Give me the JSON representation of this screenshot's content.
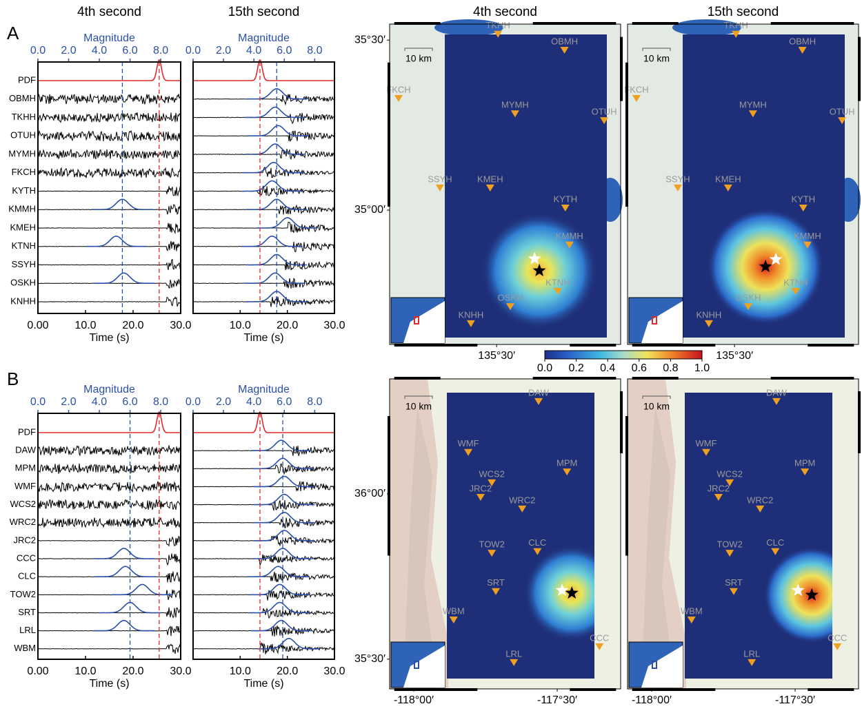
{
  "panels": [
    {
      "label": "A",
      "waveforms": {
        "pdf_label": "PDF",
        "stations": [
          "OBMH",
          "TKHH",
          "OTUH",
          "MYMH",
          "FKCH",
          "KYTH",
          "KMMH",
          "KMEH",
          "KTNH",
          "SSYH",
          "OSKH",
          "KNHH"
        ],
        "magnitude_axis": {
          "label": "Magnitude",
          "lim": [
            0,
            9.3
          ],
          "ticks": [
            {
              "value": 0,
              "label": "0.0"
            },
            {
              "value": 2,
              "label": "2.0"
            },
            {
              "value": 4,
              "label": "4.0"
            },
            {
              "value": 6,
              "label": "6.0"
            },
            {
              "value": 8,
              "label": "8.0"
            }
          ]
        },
        "time_axis": {
          "label": "Time (s)",
          "lim": [
            0,
            30
          ]
        },
        "columns": [
          {
            "title": "4th second",
            "time_ticks": [
              {
                "value": 0,
                "label": "0.00"
              },
              {
                "value": 10,
                "label": "10.0"
              },
              {
                "value": 20,
                "label": "20.0"
              },
              {
                "value": 30,
                "label": "30.0"
              }
            ],
            "true_magnitude": 5.5,
            "estimated_magnitude": 7.9,
            "station_estimates": [
              null,
              null,
              null,
              null,
              null,
              null,
              5.5,
              null,
              5.1,
              null,
              5.6,
              null
            ]
          },
          {
            "title": "15th second",
            "time_ticks": [
              {
                "value": 10,
                "label": "10.0"
              },
              {
                "value": 20,
                "label": "20.0"
              },
              {
                "value": 30,
                "label": "30.0"
              }
            ],
            "true_magnitude": 5.5,
            "estimated_magnitude": 4.4,
            "station_estimates": [
              5.5,
              5.4,
              5.6,
              5.4,
              5.3,
              5.2,
              5.5,
              6.2,
              5.2,
              5.5,
              5.4,
              5.5
            ]
          }
        ]
      },
      "maps": {
        "lonlim": [
          135.117,
          135.944
        ],
        "latlim": [
          34.605,
          35.547
        ],
        "lat_ticks": [
          {
            "value": 35.5,
            "label": "35°30′"
          },
          {
            "value": 35.0,
            "label": "35°00′"
          }
        ],
        "lon_ticks": [
          {
            "value": 135.5,
            "label": "135°30′"
          }
        ],
        "scale_label": "10 km",
        "stations": [
          {
            "name": "TKHH",
            "lon": 135.505,
            "lat": 35.507
          },
          {
            "name": "OBMH",
            "lon": 135.743,
            "lat": 35.46
          },
          {
            "name": "FKCH",
            "lon": 135.149,
            "lat": 35.318
          },
          {
            "name": "MYMH",
            "lon": 135.566,
            "lat": 35.273
          },
          {
            "name": "OTUH",
            "lon": 135.885,
            "lat": 35.253
          },
          {
            "name": "SSYH",
            "lon": 135.297,
            "lat": 35.055
          },
          {
            "name": "KMEH",
            "lon": 135.477,
            "lat": 35.055
          },
          {
            "name": "KYTH",
            "lon": 135.746,
            "lat": 34.996
          },
          {
            "name": "KMMH",
            "lon": 135.761,
            "lat": 34.887
          },
          {
            "name": "KTNH",
            "lon": 135.719,
            "lat": 34.751
          },
          {
            "name": "OSKH",
            "lon": 135.549,
            "lat": 34.706
          },
          {
            "name": "KNHH",
            "lon": 135.408,
            "lat": 34.656
          }
        ],
        "columns": [
          {
            "title": "4th second",
            "epicenter": {
              "lon": 135.636,
              "lat": 34.857
            },
            "estimate": {
              "lon": 135.653,
              "lat": 34.822
            }
          },
          {
            "title": "15th second",
            "epicenter": {
              "lon": 135.648,
              "lat": 34.855
            },
            "estimate": {
              "lon": 135.611,
              "lat": 34.834
            }
          }
        ]
      }
    },
    {
      "label": "B",
      "waveforms": {
        "pdf_label": "PDF",
        "stations": [
          "DAW",
          "MPM",
          "WMF",
          "WCS2",
          "WRC2",
          "JRC2",
          "CCC",
          "CLC",
          "TOW2",
          "SRT",
          "LRL",
          "WBM"
        ],
        "magnitude_axis": {
          "label": "Magnitude",
          "lim": [
            0,
            9.3
          ],
          "ticks": [
            {
              "value": 0,
              "label": "0.0"
            },
            {
              "value": 2,
              "label": "2.0"
            },
            {
              "value": 4,
              "label": "4.0"
            },
            {
              "value": 6,
              "label": "6.0"
            },
            {
              "value": 8,
              "label": "8.0"
            }
          ]
        },
        "time_axis": {
          "label": "Time (s)",
          "lim": [
            0,
            30
          ]
        },
        "columns": [
          {
            "time_ticks": [
              {
                "value": 0,
                "label": "0.00"
              },
              {
                "value": 10,
                "label": "10.0"
              },
              {
                "value": 20,
                "label": "20.0"
              },
              {
                "value": 30,
                "label": "30.0"
              }
            ],
            "true_magnitude": 6.0,
            "estimated_magnitude": 7.9,
            "station_estimates": [
              null,
              null,
              null,
              null,
              null,
              null,
              5.6,
              5.7,
              6.8,
              6.0,
              5.6,
              null
            ]
          },
          {
            "time_ticks": [
              {
                "value": 10,
                "label": "10.0"
              },
              {
                "value": 20,
                "label": "20.0"
              },
              {
                "value": 30,
                "label": "30.0"
              }
            ],
            "true_magnitude": 5.9,
            "estimated_magnitude": 4.4,
            "station_estimates": [
              5.8,
              5.9,
              6.0,
              6.0,
              6.0,
              6.0,
              5.9,
              5.6,
              5.7,
              5.7,
              5.8,
              6.3
            ]
          }
        ]
      },
      "maps": {
        "lonlim": [
          -118.084,
          -117.279
        ],
        "latlim": [
          35.41,
          36.348
        ],
        "lat_ticks": [
          {
            "value": 36.0,
            "label": "36°00′"
          },
          {
            "value": 35.5,
            "label": "35°30′"
          }
        ],
        "lon_ticks": [
          {
            "value": -118.0,
            "label": "-118°00′"
          },
          {
            "value": -117.5,
            "label": "-117°30′"
          }
        ],
        "scale_label": "10 km",
        "stations": [
          {
            "name": "DAW",
            "lon": -117.565,
            "lat": 36.269
          },
          {
            "name": "WMF",
            "lon": -117.81,
            "lat": 36.115
          },
          {
            "name": "MPM",
            "lon": -117.466,
            "lat": 36.056
          },
          {
            "name": "WCS2",
            "lon": -117.728,
            "lat": 36.023
          },
          {
            "name": "JRC2",
            "lon": -117.767,
            "lat": 35.979
          },
          {
            "name": "WRC2",
            "lon": -117.622,
            "lat": 35.944
          },
          {
            "name": "TOW2",
            "lon": -117.728,
            "lat": 35.81
          },
          {
            "name": "CLC",
            "lon": -117.569,
            "lat": 35.815
          },
          {
            "name": "SRT",
            "lon": -117.714,
            "lat": 35.694
          },
          {
            "name": "WBM",
            "lon": -117.861,
            "lat": 35.608
          },
          {
            "name": "CCC",
            "lon": -117.353,
            "lat": 35.527
          },
          {
            "name": "LRL",
            "lon": -117.651,
            "lat": 35.479
          }
        ],
        "columns": [
          {
            "epicenter": {
              "lon": -117.483,
              "lat": 35.708
            },
            "estimate": {
              "lon": -117.449,
              "lat": 35.7
            }
          },
          {
            "epicenter": {
              "lon": -117.49,
              "lat": 35.708
            },
            "estimate": {
              "lon": -117.442,
              "lat": 35.694
            }
          }
        ]
      }
    }
  ],
  "colorbar": {
    "lim": [
      0,
      1
    ],
    "ticks": [
      {
        "value": 0,
        "label": "0.0"
      },
      {
        "value": 0.2,
        "label": "0.2"
      },
      {
        "value": 0.4,
        "label": "0.4"
      },
      {
        "value": 0.6,
        "label": "0.6"
      },
      {
        "value": 0.8,
        "label": "0.8"
      },
      {
        "value": 1,
        "label": "1.0"
      }
    ]
  }
}
